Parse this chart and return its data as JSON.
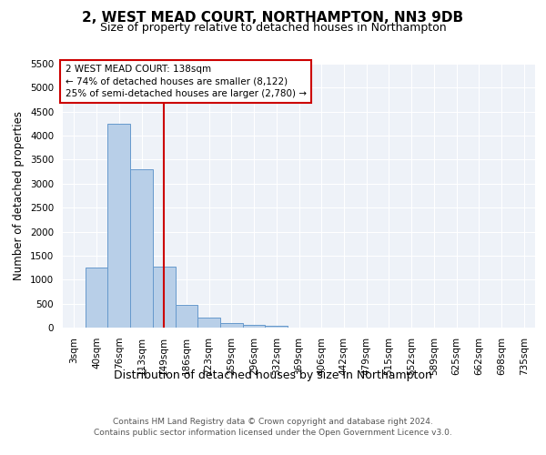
{
  "title": "2, WEST MEAD COURT, NORTHAMPTON, NN3 9DB",
  "subtitle": "Size of property relative to detached houses in Northampton",
  "xlabel": "Distribution of detached houses by size in Northampton",
  "ylabel": "Number of detached properties",
  "footer_line1": "Contains HM Land Registry data © Crown copyright and database right 2024.",
  "footer_line2": "Contains public sector information licensed under the Open Government Licence v3.0.",
  "bar_labels": [
    "3sqm",
    "40sqm",
    "76sqm",
    "113sqm",
    "149sqm",
    "186sqm",
    "223sqm",
    "259sqm",
    "296sqm",
    "332sqm",
    "369sqm",
    "406sqm",
    "442sqm",
    "479sqm",
    "515sqm",
    "552sqm",
    "589sqm",
    "625sqm",
    "662sqm",
    "698sqm",
    "735sqm"
  ],
  "bar_values": [
    0,
    1250,
    4250,
    3300,
    1280,
    480,
    200,
    90,
    55,
    30,
    0,
    0,
    0,
    0,
    0,
    0,
    0,
    0,
    0,
    0,
    0
  ],
  "bar_color": "#b8cfe8",
  "bar_edge_color": "#6699cc",
  "vline_x_index": 4,
  "vline_color": "#cc0000",
  "annotation_line1": "2 WEST MEAD COURT: 138sqm",
  "annotation_line2": "← 74% of detached houses are smaller (8,122)",
  "annotation_line3": "25% of semi-detached houses are larger (2,780) →",
  "annotation_box_color": "#ffffff",
  "annotation_box_edge": "#cc0000",
  "ylim": [
    0,
    5500
  ],
  "yticks": [
    0,
    500,
    1000,
    1500,
    2000,
    2500,
    3000,
    3500,
    4000,
    4500,
    5000,
    5500
  ],
  "title_fontsize": 11,
  "subtitle_fontsize": 9,
  "xlabel_fontsize": 9,
  "ylabel_fontsize": 8.5,
  "tick_fontsize": 7.5,
  "annotation_fontsize": 7.5,
  "background_color": "#eef2f8",
  "grid_color": "#ffffff",
  "figure_bg": "#ffffff",
  "footer_fontsize": 6.5,
  "footer_color": "#555555"
}
